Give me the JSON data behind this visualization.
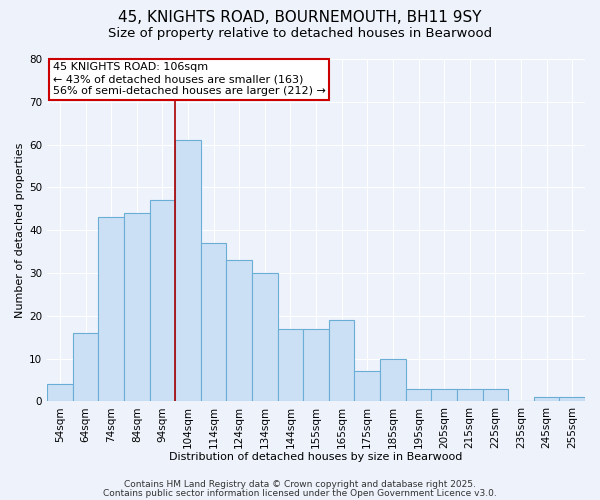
{
  "title": "45, KNIGHTS ROAD, BOURNEMOUTH, BH11 9SY",
  "subtitle": "Size of property relative to detached houses in Bearwood",
  "xlabel": "Distribution of detached houses by size in Bearwood",
  "ylabel": "Number of detached properties",
  "categories": [
    "54sqm",
    "64sqm",
    "74sqm",
    "84sqm",
    "94sqm",
    "104sqm",
    "114sqm",
    "124sqm",
    "134sqm",
    "144sqm",
    "155sqm",
    "165sqm",
    "175sqm",
    "185sqm",
    "195sqm",
    "205sqm",
    "215sqm",
    "225sqm",
    "235sqm",
    "245sqm",
    "255sqm"
  ],
  "values": [
    4,
    16,
    43,
    44,
    47,
    61,
    37,
    33,
    30,
    17,
    17,
    19,
    7,
    10,
    3,
    3,
    3,
    3,
    0,
    1,
    1
  ],
  "bar_color": "#cce0f5",
  "bar_edge_color": "#6aaed6",
  "bar_edge_width": 0.8,
  "vline_color": "#aa0000",
  "vline_x_index": 5,
  "annotation_text_line1": "45 KNIGHTS ROAD: 106sqm",
  "annotation_text_line2": "← 43% of detached houses are smaller (163)",
  "annotation_text_line3": "56% of semi-detached houses are larger (212) →",
  "annotation_box_color": "white",
  "annotation_box_edge_color": "#cc0000",
  "ylim": [
    0,
    80
  ],
  "yticks": [
    0,
    10,
    20,
    30,
    40,
    50,
    60,
    70,
    80
  ],
  "footer1": "Contains HM Land Registry data © Crown copyright and database right 2025.",
  "footer2": "Contains public sector information licensed under the Open Government Licence v3.0.",
  "background_color": "#edf2fb",
  "grid_color": "white",
  "title_fontsize": 11,
  "subtitle_fontsize": 9.5,
  "axis_label_fontsize": 8,
  "tick_fontsize": 7.5,
  "annotation_fontsize": 8,
  "footer_fontsize": 6.5
}
